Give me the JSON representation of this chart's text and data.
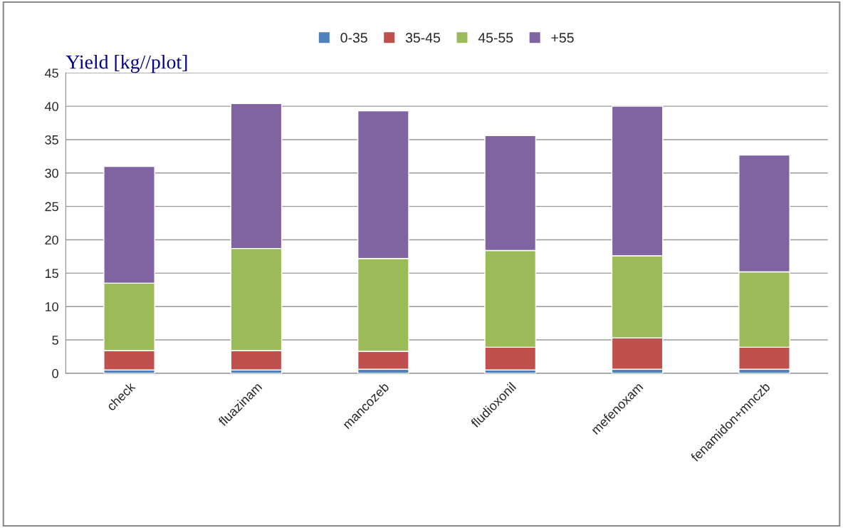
{
  "chart_data": {
    "type": "bar",
    "stacked": true,
    "ylabel": "Yield [kg//plot]",
    "categories": [
      "check",
      "fluazinam",
      "mancozeb",
      "fludioxonil",
      "mefenoxam",
      "fenamidon+mnczb"
    ],
    "series": [
      {
        "name": "0-35",
        "color": "#4f81bd",
        "values": [
          0.5,
          0.5,
          0.6,
          0.5,
          0.6,
          0.6
        ]
      },
      {
        "name": "35-45",
        "color": "#c0504d",
        "values": [
          2.9,
          2.9,
          2.7,
          3.4,
          4.7,
          3.3
        ]
      },
      {
        "name": "45-55",
        "color": "#9bbb59",
        "values": [
          10.1,
          15.3,
          13.9,
          14.5,
          12.3,
          11.3
        ]
      },
      {
        "name": "+55",
        "color": "#8064a2",
        "values": [
          17.5,
          21.7,
          22.1,
          17.2,
          22.4,
          17.5
        ]
      }
    ],
    "ylim": [
      0,
      45
    ],
    "yticks": [
      0,
      5,
      10,
      15,
      20,
      25,
      30,
      35,
      40,
      45
    ],
    "grid": "y",
    "legend": "top"
  }
}
